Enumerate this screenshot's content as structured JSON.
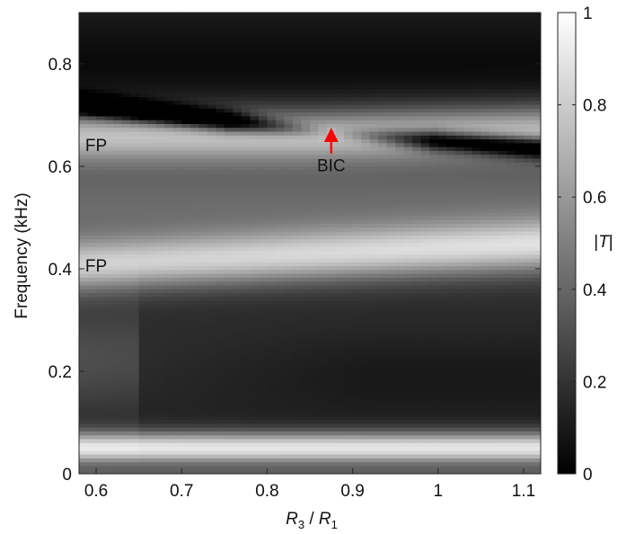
{
  "chart_data": {
    "type": "heatmap",
    "title": "",
    "xlabel": {
      "main": "R",
      "sub1": "3",
      "slash": " / ",
      "main2": "R",
      "sub2": "1"
    },
    "ylabel": "Frequency (kHz)",
    "xlim": [
      0.58,
      1.12
    ],
    "ylim": [
      0,
      0.9
    ],
    "x_ticks": [
      {
        "value": 0.6,
        "label": "0.6"
      },
      {
        "value": 0.7,
        "label": "0.7"
      },
      {
        "value": 0.8,
        "label": "0.8"
      },
      {
        "value": 0.9,
        "label": "0.9"
      },
      {
        "value": 1.0,
        "label": "1"
      },
      {
        "value": 1.1,
        "label": "1.1"
      }
    ],
    "y_ticks": [
      {
        "value": 0,
        "label": "0"
      },
      {
        "value": 0.2,
        "label": "0.2"
      },
      {
        "value": 0.4,
        "label": "0.4"
      },
      {
        "value": 0.6,
        "label": "0.6"
      },
      {
        "value": 0.8,
        "label": "0.8"
      }
    ],
    "colormap": "gray",
    "colorbar": {
      "label": "|T|",
      "range": [
        0,
        1
      ],
      "ticks": [
        {
          "value": 0,
          "label": "0"
        },
        {
          "value": 0.2,
          "label": "0.2"
        },
        {
          "value": 0.4,
          "label": "0.4"
        },
        {
          "value": 0.6,
          "label": "0.6"
        },
        {
          "value": 0.8,
          "label": "0.8"
        },
        {
          "value": 1,
          "label": "1"
        }
      ]
    },
    "features": {
      "upper_band_center_y": [
        {
          "x": 0.58,
          "y": 0.66
        },
        {
          "x": 0.85,
          "y": 0.66
        },
        {
          "x": 1.12,
          "y": 0.67
        }
      ],
      "upper_dark_line": [
        {
          "x": 0.58,
          "y": 0.72
        },
        {
          "x": 0.875,
          "y": 0.665
        },
        {
          "x": 1.12,
          "y": 0.635
        }
      ],
      "lower_band_center_y": [
        {
          "x": 0.58,
          "y": 0.405
        },
        {
          "x": 0.85,
          "y": 0.425
        },
        {
          "x": 1.12,
          "y": 0.445
        }
      ]
    },
    "annotations": [
      {
        "id": "fp-upper",
        "text": "FP",
        "x": 0.6,
        "y": 0.63
      },
      {
        "id": "fp-lower",
        "text": "FP",
        "x": 0.6,
        "y": 0.395
      },
      {
        "id": "bic",
        "text": "BIC",
        "x": 0.875,
        "y": 0.59,
        "arrow": {
          "x": 0.875,
          "y_from": 0.625,
          "y_to": 0.672,
          "color": "#ff0000"
        }
      }
    ]
  }
}
